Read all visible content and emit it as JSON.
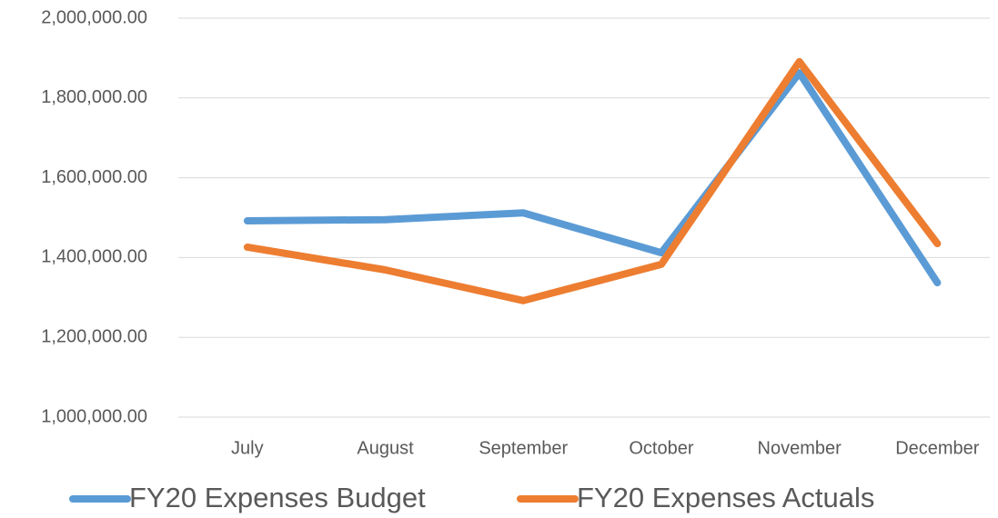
{
  "chart_data": {
    "type": "line",
    "categories": [
      "July",
      "August",
      "September",
      "October",
      "November",
      "December"
    ],
    "series": [
      {
        "name": "FY20 Expenses Budget",
        "color": "#5b9bd5",
        "values": [
          1492000,
          1495000,
          1512000,
          1412000,
          1863000,
          1337000
        ]
      },
      {
        "name": "FY20 Expenses Actuals",
        "color": "#ed7d31",
        "values": [
          1426000,
          1369000,
          1292000,
          1383000,
          1891000,
          1435000
        ]
      }
    ],
    "ylim": [
      1000000,
      2000000
    ],
    "yticks": [
      {
        "value": 1000000,
        "label": "1,000,000.00"
      },
      {
        "value": 1200000,
        "label": "1,200,000.00"
      },
      {
        "value": 1400000,
        "label": "1,400,000.00"
      },
      {
        "value": 1600000,
        "label": "1,600,000.00"
      },
      {
        "value": 1800000,
        "label": "1,800,000.00"
      },
      {
        "value": 2000000,
        "label": "2,000,000.00"
      }
    ],
    "grid": true,
    "legend": "bottom"
  }
}
